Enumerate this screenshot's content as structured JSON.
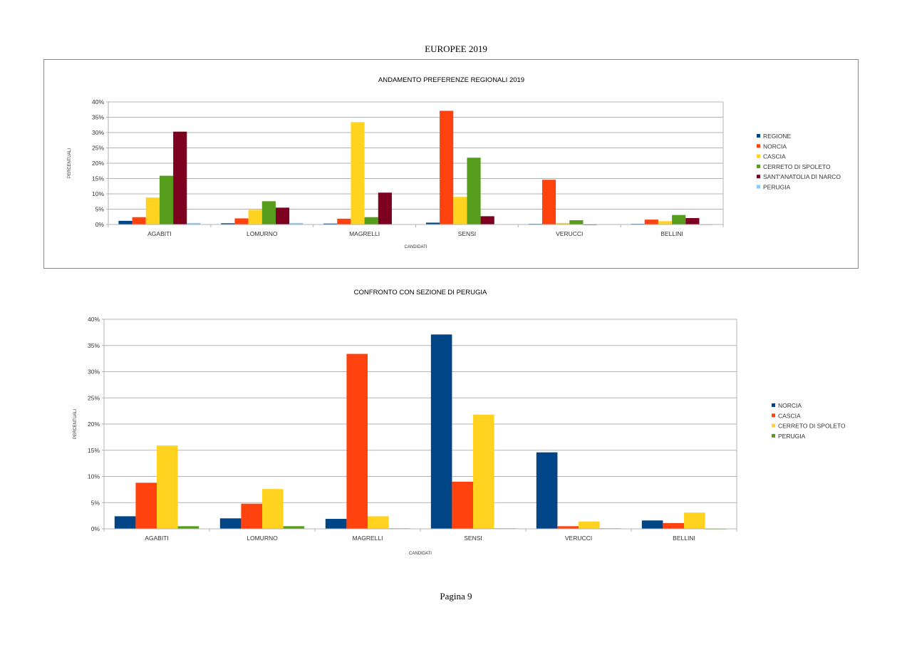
{
  "document": {
    "title": "EUROPEE 2019",
    "page_label": "Pagina 9"
  },
  "chart_data": [
    {
      "type": "bar",
      "title": "ANDAMENTO PREFERENZE REGIONALI 2019",
      "xlabel": "CANDIDATI",
      "ylabel": "PERCENTUALI",
      "ylim": [
        0,
        40
      ],
      "yticks": [
        "0%",
        "5%",
        "10%",
        "15%",
        "20%",
        "25%",
        "30%",
        "35%",
        "40%"
      ],
      "grid": true,
      "legend": "right",
      "categories": [
        "AGABITI",
        "LOMURNO",
        "MAGRELLI",
        "SENSI",
        "VERUCCI",
        "BELLINI"
      ],
      "series": [
        {
          "name": "REGIONE",
          "color": "#004586",
          "values": [
            1.2,
            0.4,
            0.3,
            0.6,
            0.2,
            0.2
          ]
        },
        {
          "name": "NORCIA",
          "color": "#ff420e",
          "values": [
            2.4,
            2.0,
            1.9,
            37.1,
            14.6,
            1.6
          ]
        },
        {
          "name": "CASCIA",
          "color": "#ffd320",
          "values": [
            8.8,
            4.8,
            33.4,
            9.0,
            0.5,
            1.1
          ]
        },
        {
          "name": "CERRETO DI SPOLETO",
          "color": "#579d1c",
          "values": [
            15.9,
            7.6,
            2.4,
            21.8,
            1.4,
            3.1
          ]
        },
        {
          "name": "SANT'ANATOLIA DI NARCO",
          "color": "#7e0021",
          "values": [
            30.3,
            5.5,
            10.4,
            2.7,
            0.0,
            2.1
          ]
        },
        {
          "name": "PERUGIA",
          "color": "#83caff",
          "values": [
            0.5,
            0.5,
            0.1,
            0.1,
            0.1,
            0.0
          ]
        }
      ]
    },
    {
      "type": "bar",
      "title": "CONFRONTO CON SEZIONE DI PERUGIA",
      "xlabel": "CANDIDATI",
      "ylabel": "PERCENTUALI",
      "ylim": [
        0,
        40
      ],
      "yticks": [
        "0%",
        "5%",
        "10%",
        "15%",
        "20%",
        "25%",
        "30%",
        "35%",
        "40%"
      ],
      "grid": true,
      "legend": "right",
      "categories": [
        "AGABITI",
        "LOMURNO",
        "MAGRELLI",
        "SENSI",
        "VERUCCI",
        "BELLINI"
      ],
      "series": [
        {
          "name": "NORCIA",
          "color": "#004586",
          "values": [
            2.4,
            2.0,
            1.9,
            37.1,
            14.6,
            1.6
          ]
        },
        {
          "name": "CASCIA",
          "color": "#ff420e",
          "values": [
            8.8,
            4.8,
            33.4,
            9.0,
            0.5,
            1.1
          ]
        },
        {
          "name": "CERRETO DI SPOLETO",
          "color": "#ffd320",
          "values": [
            15.9,
            7.6,
            2.4,
            21.8,
            1.4,
            3.1
          ]
        },
        {
          "name": "PERUGIA",
          "color": "#579d1c",
          "values": [
            0.5,
            0.5,
            0.1,
            0.1,
            0.1,
            0.0
          ]
        }
      ]
    }
  ]
}
